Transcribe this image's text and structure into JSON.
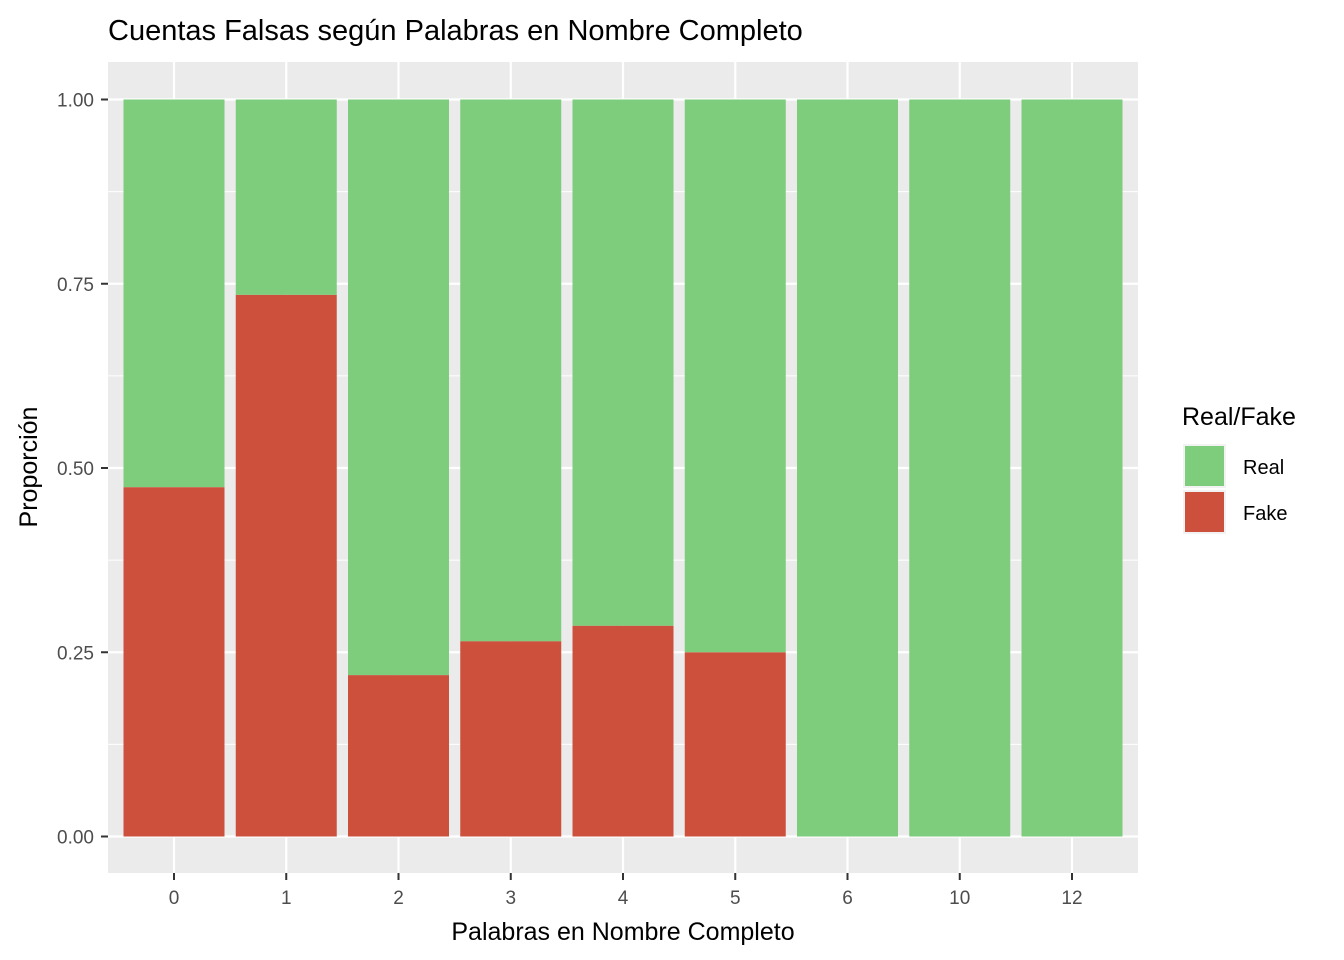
{
  "chart_data": {
    "type": "bar",
    "stacked": true,
    "title": "Cuentas Falsas según Palabras en Nombre Completo",
    "xlabel": "Palabras en Nombre Completo",
    "ylabel": "Proporción",
    "categories": [
      "0",
      "1",
      "2",
      "3",
      "4",
      "5",
      "6",
      "10",
      "12"
    ],
    "ylim": [
      0,
      1
    ],
    "yticks": [
      "0.00",
      "0.25",
      "0.50",
      "0.75",
      "1.00"
    ],
    "grid": true,
    "legend": {
      "title": "Real/Fake",
      "position": "right",
      "entries": [
        "Real",
        "Fake"
      ]
    },
    "series": [
      {
        "name": "Fake",
        "color": "#CD503C",
        "values": [
          0.474,
          0.735,
          0.219,
          0.265,
          0.286,
          0.25,
          0,
          0,
          0
        ]
      },
      {
        "name": "Real",
        "color": "#7DCD7D",
        "values": [
          0.526,
          0.265,
          0.781,
          0.735,
          0.714,
          0.75,
          1,
          1,
          1
        ]
      }
    ],
    "colors": {
      "panel_background": "#EBEBEB",
      "grid_major": "#FFFFFF",
      "tick_text": "#4D4D4D"
    }
  }
}
